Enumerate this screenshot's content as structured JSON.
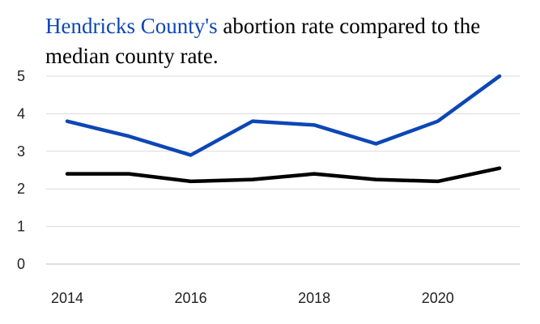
{
  "chart_data": {
    "type": "line",
    "title": {
      "highlight": "Hendricks County's",
      "rest": " abortion rate compared to the median county rate."
    },
    "xlabel": "",
    "ylabel": "",
    "x": [
      2014,
      2015,
      2016,
      2017,
      2018,
      2019,
      2020,
      2021
    ],
    "x_ticks": [
      "2014",
      "2016",
      "2018",
      "2020"
    ],
    "y_ticks": [
      "0",
      "1",
      "2",
      "3",
      "4",
      "5"
    ],
    "xlim": [
      2014,
      2021
    ],
    "ylim": [
      0,
      5
    ],
    "grid": true,
    "legend": "none",
    "series": [
      {
        "values": [
          3.8,
          3.4,
          2.9,
          3.8,
          3.7,
          3.2,
          3.8,
          5.0
        ],
        "color": "#0d47b5"
      },
      {
        "values": [
          2.4,
          2.4,
          2.2,
          2.25,
          2.4,
          2.25,
          2.2,
          2.55
        ],
        "color": "#000000"
      }
    ]
  }
}
